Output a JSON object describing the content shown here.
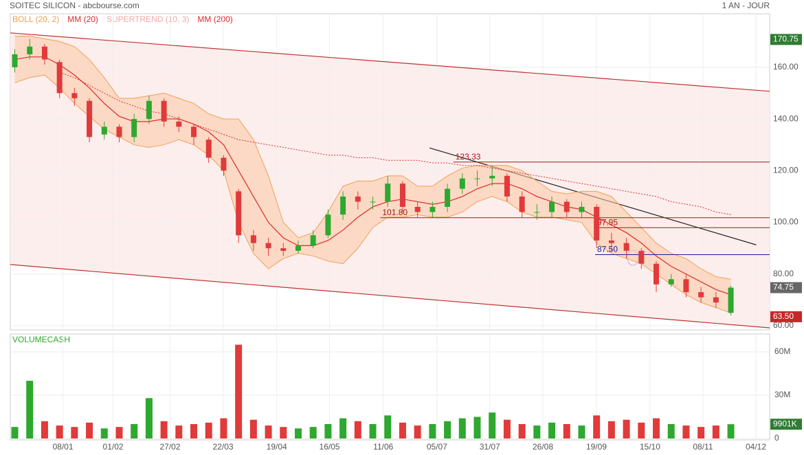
{
  "chart_data": {
    "type": "candlestick",
    "title": "SOITEC SILICON - abcbourse.com",
    "period": "1 AN - JOUR",
    "legend": [
      {
        "label": "BOLL (20, 2)",
        "color": "#f0a050"
      },
      {
        "label": "MM (20)",
        "color": "#dd2a2a"
      },
      {
        "label": "SUPERTREND (10, 3)",
        "color": "#f4a6a6"
      },
      {
        "label": "MM (200)",
        "color": "#dd2a2a"
      }
    ],
    "xlim": [
      -0.3,
      50.6
    ],
    "xticks": [
      {
        "value": 3.23,
        "label": "08/01"
      },
      {
        "value": 6.59,
        "label": "01/02"
      },
      {
        "value": 10.41,
        "label": "27/02"
      },
      {
        "value": 13.96,
        "label": "22/03"
      },
      {
        "value": 17.56,
        "label": "19/04"
      },
      {
        "value": 21.1,
        "label": "16/05"
      },
      {
        "value": 24.7,
        "label": "11/06"
      },
      {
        "value": 28.3,
        "label": "05/07"
      },
      {
        "value": 31.84,
        "label": "31/07"
      },
      {
        "value": 35.4,
        "label": "26/08"
      },
      {
        "value": 38.99,
        "label": "19/09"
      },
      {
        "value": 42.58,
        "label": "15/10"
      },
      {
        "value": 46.13,
        "label": "08/11"
      },
      {
        "value": 49.68,
        "label": "04/12"
      }
    ],
    "ylim": [
      58.4,
      180.7
    ],
    "yticks": [
      {
        "value": 160,
        "label": "160.00"
      },
      {
        "value": 140,
        "label": "140.00"
      },
      {
        "value": 120,
        "label": "120.00"
      },
      {
        "value": 100,
        "label": "100.00"
      },
      {
        "value": 80,
        "label": "80.00"
      },
      {
        "value": 60,
        "label": "60.00"
      }
    ],
    "grid": true,
    "up_color": "#2ea82e",
    "down_color": "#e03a3a",
    "open": [
      160,
      165,
      168,
      162,
      150,
      147,
      134,
      137,
      133,
      140,
      147,
      139,
      137,
      132,
      125,
      112,
      95,
      92,
      90,
      89,
      91,
      95,
      103,
      110,
      108,
      108,
      115,
      106,
      104,
      106,
      113,
      117,
      117,
      118,
      110,
      104,
      104,
      108,
      104,
      106,
      93,
      92,
      89,
      84,
      76,
      78,
      73,
      71,
      65
    ],
    "high": [
      167,
      171,
      169,
      163,
      152,
      148,
      139,
      138,
      142,
      149,
      148,
      141,
      138,
      133,
      126,
      113,
      97,
      94,
      92,
      93,
      97,
      105,
      112,
      112,
      110,
      118,
      116,
      108,
      108,
      115,
      119,
      120,
      122,
      119,
      112,
      107,
      110,
      109,
      108,
      107,
      96,
      94,
      90,
      85,
      80,
      80,
      75,
      73,
      75.5
    ],
    "low": [
      158,
      163,
      161,
      148,
      145,
      131,
      132,
      131,
      131,
      138,
      137,
      135,
      130,
      123,
      118,
      92,
      89,
      87,
      87,
      88,
      90,
      94,
      101,
      105,
      105,
      106,
      104,
      102,
      102,
      104,
      111,
      114,
      114,
      108,
      102,
      101,
      102,
      102,
      102,
      90,
      89,
      86,
      82,
      73,
      75,
      71,
      69,
      67,
      64
    ],
    "close": [
      165,
      168,
      163,
      150,
      148,
      133,
      137,
      133,
      140,
      147,
      139,
      137,
      133,
      125,
      120,
      95,
      92,
      90,
      89,
      91,
      95,
      103,
      110,
      108,
      108,
      115,
      106,
      104,
      106,
      113,
      117,
      117,
      118,
      110,
      104,
      104,
      108,
      104,
      106,
      93,
      92,
      89,
      84,
      76,
      78,
      73,
      71,
      69,
      74.75
    ],
    "boll_upper": [
      172,
      172,
      171,
      170,
      168,
      163,
      156,
      148,
      148,
      149,
      150,
      148,
      146,
      142,
      140,
      140,
      132,
      118,
      100,
      94,
      96,
      104,
      114,
      116,
      116,
      118,
      118,
      114,
      114,
      118,
      121,
      122,
      122,
      122,
      120,
      116,
      112,
      111,
      112,
      112,
      110,
      104,
      98,
      92,
      88,
      86,
      82,
      79,
      78
    ],
    "boll_lower": [
      154,
      156,
      157,
      152,
      146,
      141,
      136,
      133,
      130,
      129,
      130,
      132,
      130,
      126,
      120,
      100,
      88,
      82,
      86,
      88,
      87,
      85,
      84,
      90,
      98,
      102,
      102,
      103,
      102,
      102,
      104,
      108,
      110,
      108,
      104,
      102,
      102,
      101,
      100,
      92,
      88,
      86,
      84,
      80,
      76,
      72,
      69,
      67,
      65
    ],
    "mm20": [
      163,
      164,
      164,
      161,
      157,
      152,
      146,
      141,
      139,
      139,
      140,
      140,
      138,
      135,
      130,
      120,
      110,
      100,
      94,
      91,
      91,
      93,
      97,
      102,
      106,
      108,
      109,
      108,
      107,
      108,
      110,
      113,
      115,
      115,
      113,
      110,
      108,
      106,
      105,
      102,
      99,
      96,
      92,
      87,
      83,
      80,
      77,
      74,
      72
    ],
    "mm200": [
      null,
      null,
      null,
      158,
      156,
      153,
      150,
      147,
      145,
      143,
      142,
      140,
      138,
      136,
      134,
      132,
      131,
      130,
      129,
      128,
      127,
      126,
      126,
      125,
      125,
      124,
      124,
      124,
      123,
      123,
      122,
      122,
      121,
      120,
      119,
      118,
      117,
      116,
      115,
      114,
      113,
      112,
      111,
      110,
      108,
      107,
      106,
      104,
      103
    ],
    "channel_upper": {
      "x": [
        -0.3,
        50.6
      ],
      "y": [
        173.3,
        150.7
      ]
    },
    "channel_lower": {
      "x": [
        -0.3,
        50.6
      ],
      "y": [
        83.7,
        59.2
      ]
    },
    "trendline": {
      "x": [
        27.8,
        49.7
      ],
      "y": [
        128.8,
        91.3
      ]
    },
    "levels": [
      {
        "value": 123.33,
        "label": "123.33",
        "from": 29.4,
        "color": "#a01818"
      },
      {
        "value": 101.8,
        "label": "101.80",
        "from": 24.5,
        "color": "#a01818"
      },
      {
        "value": 97.95,
        "label": "97.95",
        "from": 38.9,
        "color": "#a01818"
      },
      {
        "value": 87.5,
        "label": "87.50",
        "from": 38.9,
        "color": "#1a1a9a"
      }
    ],
    "price_markers": [
      {
        "value": 170.75,
        "label": "170.75",
        "color": "#2e7d32"
      },
      {
        "value": 74.75,
        "label": "74.75",
        "color": "#666666"
      },
      {
        "value": 63.5,
        "label": "63.50",
        "color": "#c62828"
      }
    ],
    "volume": {
      "title": "VOLUMECASH",
      "values": [
        8,
        40,
        12,
        9,
        8,
        11,
        7,
        8,
        10,
        28,
        12,
        9,
        10,
        11,
        14,
        65,
        13,
        9,
        8,
        7,
        8,
        10,
        14,
        12,
        10,
        16,
        11,
        9,
        10,
        12,
        14,
        15,
        18,
        13,
        10,
        9,
        11,
        10,
        9,
        16,
        12,
        13,
        11,
        14,
        10,
        9,
        8,
        9,
        9.901
      ],
      "ylim": [
        0,
        72.4
      ],
      "yticks": [
        {
          "value": 60,
          "label": "60M"
        },
        {
          "value": 30,
          "label": "30M"
        },
        {
          "value": 0,
          "label": "0"
        }
      ],
      "marker": {
        "value": 9.901,
        "label": "9901K",
        "color": "#2e7d32"
      }
    }
  }
}
